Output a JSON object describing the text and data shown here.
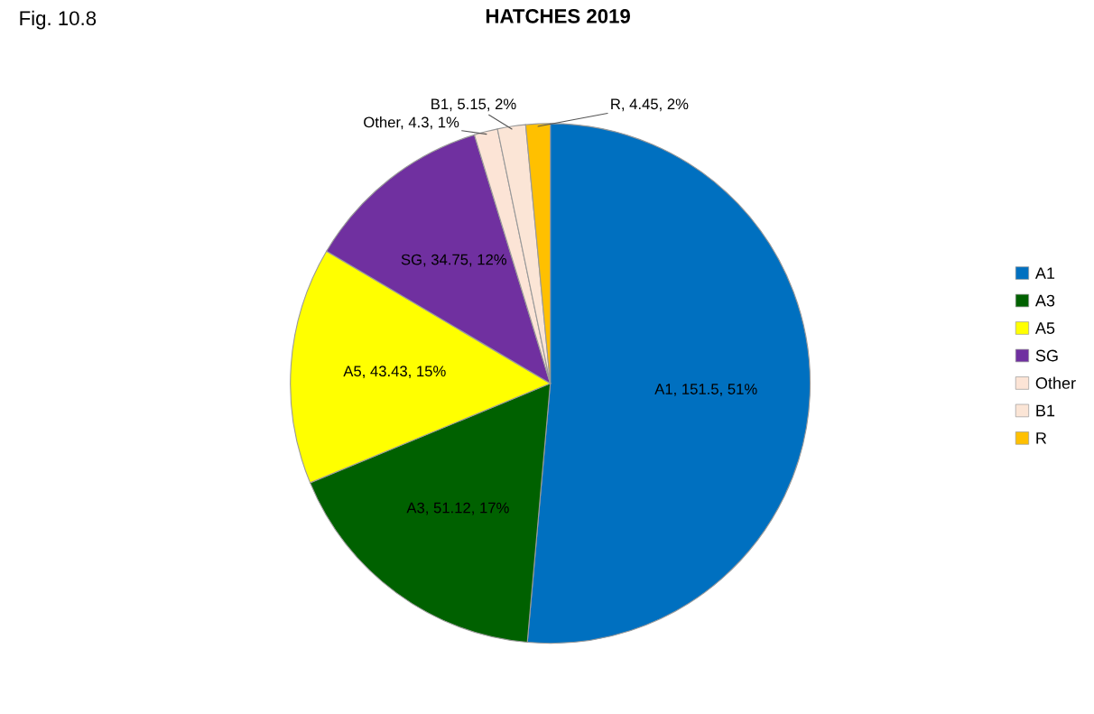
{
  "chart_data": {
    "type": "pie",
    "title": "HATCHES 2019",
    "categories": [
      "A1",
      "A3",
      "A5",
      "SG",
      "Other",
      "B1",
      "R"
    ],
    "values": [
      151.5,
      51.12,
      43.43,
      34.75,
      4.3,
      5.15,
      4.45
    ],
    "colors": [
      "#0070c0",
      "#006100",
      "#ffff00",
      "#7030a0",
      "#fce4d6",
      "#fbe5d6",
      "#ffc000"
    ],
    "value_labels": [
      "A1, 151.5, 51%",
      "A3, 51.12, 17%",
      "A5, 43.43, 15%",
      "SG, 34.75, 12%",
      "Other, 4.3, 1%",
      "B1, 5.15, 2%",
      "R, 4.45, 2%"
    ],
    "legend": "right",
    "annotations": [
      "Fig. 10.8"
    ]
  }
}
